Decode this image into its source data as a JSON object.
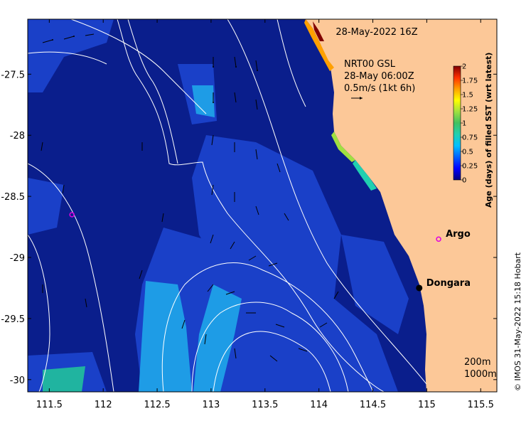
{
  "header": {
    "datetime": "28-May-2022 16Z"
  },
  "current_info": {
    "line1": "NRT00 GSL",
    "line2": "28-May 06:00Z",
    "line3": "0.5m/s (1kt 6h)"
  },
  "axes": {
    "x_ticks": [
      "111.5",
      "112",
      "112.5",
      "113",
      "113.5",
      "114",
      "114.5",
      "115",
      "115.5"
    ],
    "y_ticks": [
      "-27.5",
      "-28",
      "-28.5",
      "-29",
      "-29.5",
      "-30"
    ],
    "x_range": [
      111.3,
      115.65
    ],
    "y_range": [
      -30.1,
      -27.05
    ]
  },
  "colorbar": {
    "label": "Age (days) of filled SST (wrt latest)",
    "ticks": [
      "0",
      "0.25",
      "0.5",
      "0.75",
      "1",
      "1.25",
      "1.5",
      "1.75",
      "2"
    ],
    "colors": [
      "#00007f",
      "#0000ff",
      "#0060ff",
      "#00c0ff",
      "#20d0b0",
      "#40c060",
      "#a0e040",
      "#ffff00",
      "#ffa000",
      "#ff3000",
      "#800000"
    ]
  },
  "places": [
    {
      "name": "Argo",
      "lon": 115.11,
      "lat": -28.85,
      "marker": "open-circle",
      "color": "#e000e0"
    },
    {
      "name": "Dongara",
      "lon": 114.93,
      "lat": -29.25,
      "marker": "dot",
      "color": "#000000"
    }
  ],
  "argo_float_offshore": {
    "lon": 111.71,
    "lat": -28.65,
    "color": "#e000e0"
  },
  "depth_contours": {
    "label_200": "200m",
    "label_1000": "1000m"
  },
  "credit": "© IMOS 31-May-2022 15:18 Hobart",
  "colors": {
    "land": "#fcc898",
    "ocean_dark": "#0a1e8c",
    "ocean_mid": "#1a40c8",
    "ocean_light": "#1e9ce6",
    "ocean_teal": "#20b4a0"
  }
}
